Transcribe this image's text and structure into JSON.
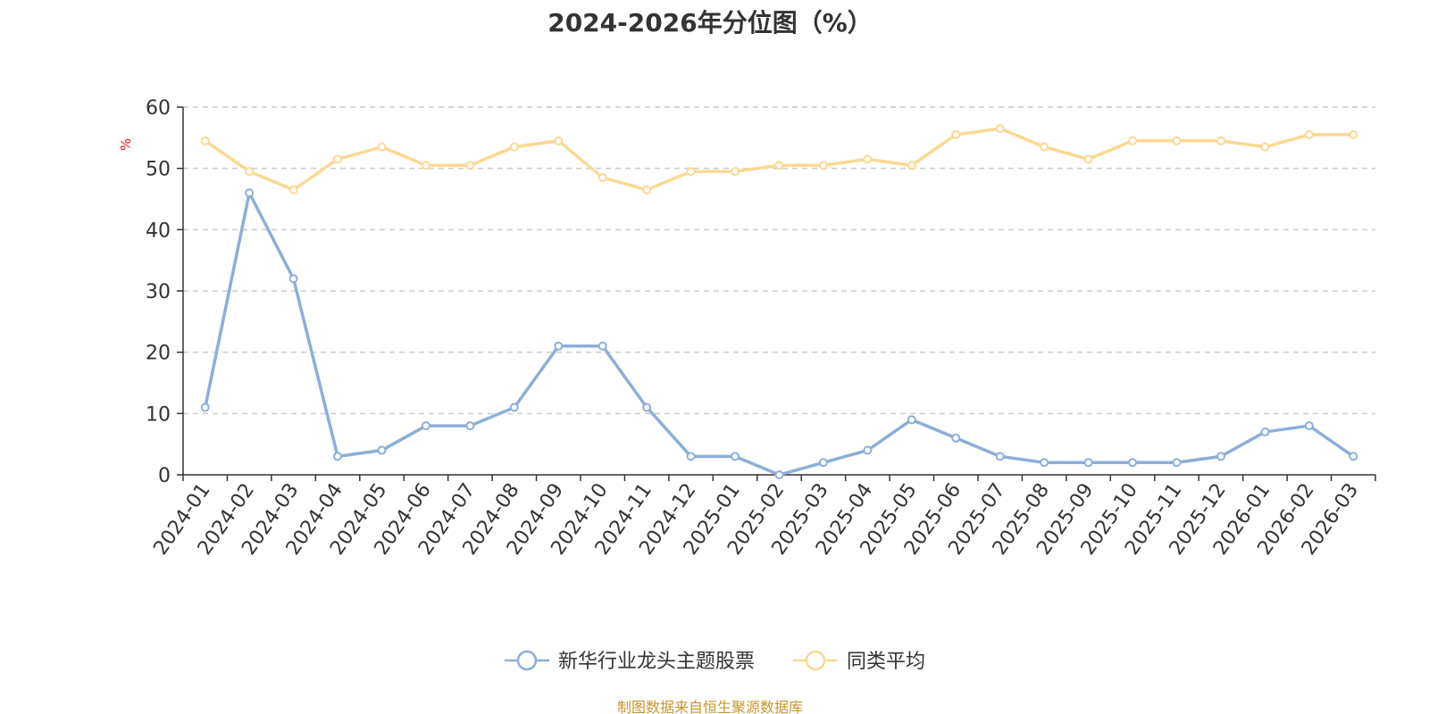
{
  "chart_data": {
    "type": "line",
    "title": "2024-2026年分位图（%）",
    "ylabel": "%",
    "ylim": [
      0,
      60
    ],
    "yticks": [
      0,
      10,
      20,
      30,
      40,
      50,
      60
    ],
    "grid": true,
    "legend_position": "bottom",
    "categories": [
      "2024-01",
      "2024-02",
      "2024-03",
      "2024-04",
      "2024-05",
      "2024-06",
      "2024-07",
      "2024-08",
      "2024-09",
      "2024-10",
      "2024-11",
      "2024-12",
      "2025-01",
      "2025-02",
      "2025-03",
      "2025-04",
      "2025-05",
      "2025-06",
      "2025-07",
      "2025-08",
      "2025-09",
      "2025-10",
      "2025-11",
      "2025-12",
      "2026-01",
      "2026-02",
      "2026-03"
    ],
    "series": [
      {
        "name": "新华行业龙头主题股票",
        "color": "#8eaed8",
        "values": [
          11,
          46,
          32,
          3,
          4,
          8,
          8,
          11,
          21,
          21,
          11,
          3,
          3,
          0,
          2,
          4,
          9,
          6,
          3,
          2,
          2,
          2,
          2,
          3,
          7,
          8,
          3
        ]
      },
      {
        "name": "同类平均",
        "color": "#fad994",
        "values": [
          54.5,
          49.5,
          46.5,
          51.5,
          53.5,
          50.5,
          50.5,
          53.5,
          54.5,
          48.5,
          46.5,
          49.5,
          49.5,
          50.5,
          50.5,
          51.5,
          50.5,
          55.5,
          56.5,
          53.5,
          51.5,
          54.5,
          54.5,
          54.5,
          53.5,
          55.5,
          55.5
        ]
      }
    ]
  },
  "source_note": "制图数据来自恒生聚源数据库"
}
